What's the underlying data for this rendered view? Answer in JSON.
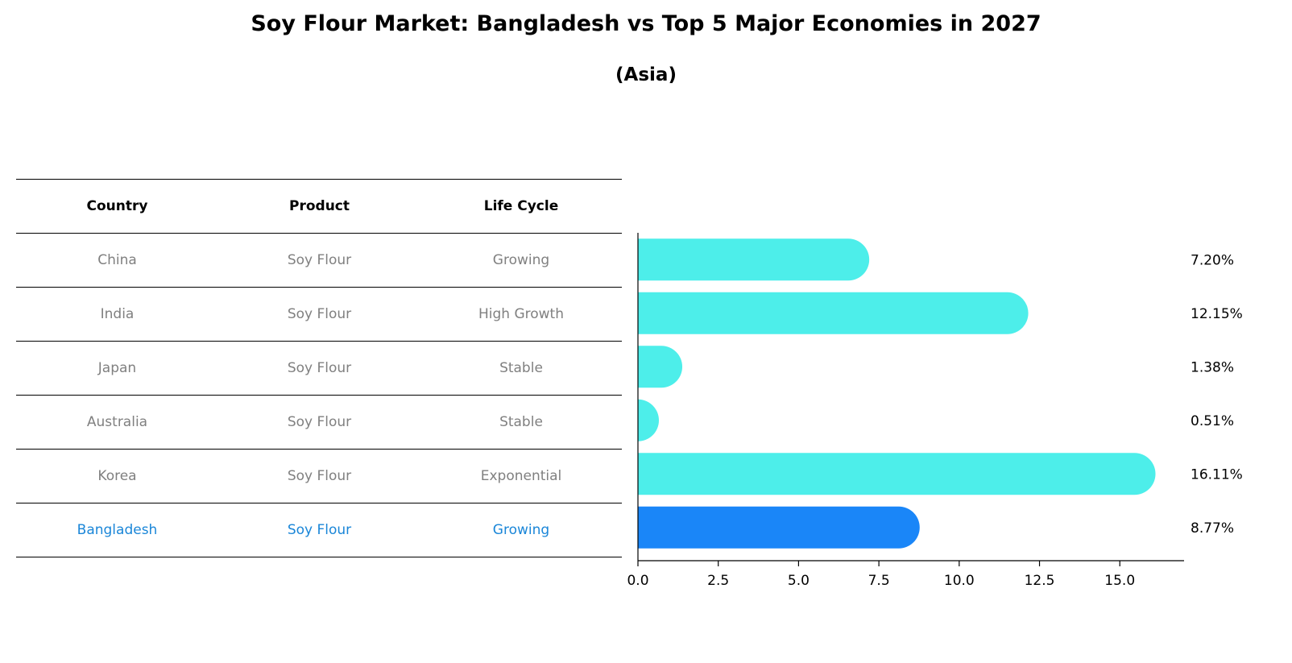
{
  "title": "Soy Flour Market: Bangladesh vs Top 5 Major Economies in 2027",
  "subtitle": "(Asia)",
  "table": {
    "headers": [
      "Country",
      "Product",
      "Life Cycle"
    ],
    "rows": [
      {
        "country": "China",
        "product": "Soy Flour",
        "life_cycle": "Growing"
      },
      {
        "country": "India",
        "product": "Soy Flour",
        "life_cycle": "High Growth"
      },
      {
        "country": "Japan",
        "product": "Soy Flour",
        "life_cycle": "Stable"
      },
      {
        "country": "Australia",
        "product": "Soy Flour",
        "life_cycle": "Stable"
      },
      {
        "country": "Korea",
        "product": "Soy Flour",
        "life_cycle": "Exponential"
      },
      {
        "country": "Bangladesh",
        "product": "Soy Flour",
        "life_cycle": "Growing"
      }
    ],
    "highlight_row": 5
  },
  "colors": {
    "bar": "#4deeea",
    "highlight_bar": "#1a86f8",
    "muted_text": "#808080",
    "highlight_text": "#1a86d8"
  },
  "chart_data": {
    "type": "bar",
    "orientation": "horizontal",
    "categories": [
      "China",
      "India",
      "Japan",
      "Australia",
      "Korea",
      "Bangladesh"
    ],
    "values": [
      7.2,
      12.15,
      1.38,
      0.51,
      16.11,
      8.77
    ],
    "value_labels": [
      "7.20%",
      "12.15%",
      "1.38%",
      "0.51%",
      "16.11%",
      "8.77%"
    ],
    "xlim": [
      0,
      17
    ],
    "xticks": [
      0.0,
      2.5,
      5.0,
      7.5,
      10.0,
      12.5,
      15.0
    ],
    "xtick_labels": [
      "0.0",
      "2.5",
      "5.0",
      "7.5",
      "10.0",
      "12.5",
      "15.0"
    ],
    "highlight": "Bangladesh",
    "grid": false
  }
}
